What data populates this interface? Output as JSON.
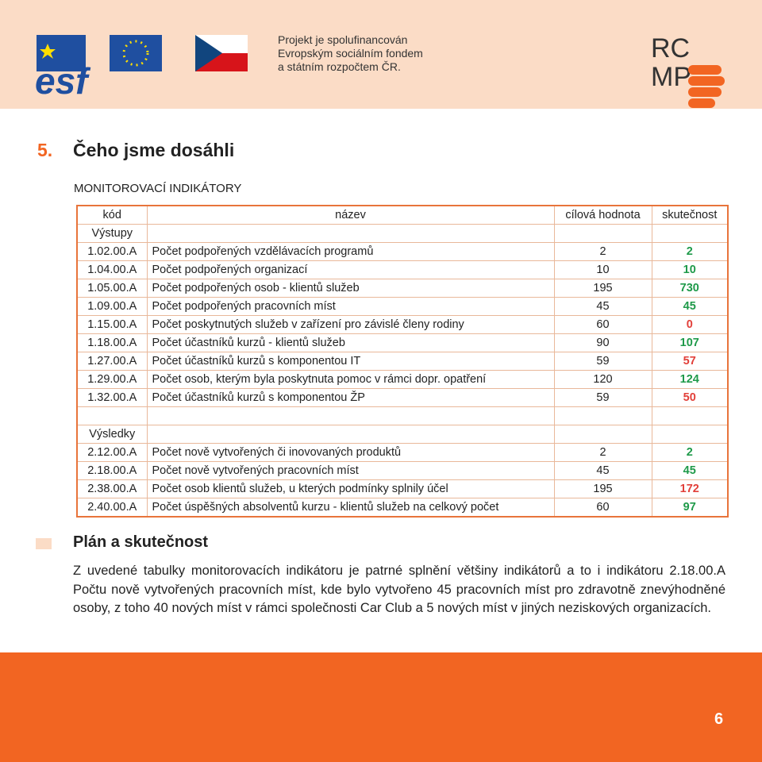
{
  "header": {
    "logos": {
      "esf": "esf",
      "rcmp_top": "RC",
      "rcmp_bottom": "MP"
    },
    "funding_lines": [
      "Projekt je spolufinancován",
      "Evropským sociálním fondem",
      "a státním rozpočtem ČR."
    ]
  },
  "section": {
    "number": "5.",
    "title": "Čeho jsme dosáhli"
  },
  "table_title": "MONITOROVACÍ INDIKÁTORY",
  "table": {
    "header": [
      "kód",
      "název",
      "cílová hodnota",
      "skutečnost"
    ],
    "sections": [
      {
        "label": "Výstupy",
        "rows": [
          [
            "1.02.00.A",
            "Počet podpořených vzdělávacích programů",
            2,
            2
          ],
          [
            "1.04.00.A",
            "Počet podpořených organizací",
            10,
            10
          ],
          [
            "1.05.00.A",
            "Počet podpořených osob - klientů služeb",
            195,
            730
          ],
          [
            "1.09.00.A",
            "Počet podpořených pracovních míst",
            45,
            45
          ],
          [
            "1.15.00.A",
            "Počet poskytnutých služeb v zařízení pro závislé členy rodiny",
            60,
            0
          ],
          [
            "1.18.00.A",
            "Počet účastníků kurzů - klientů služeb",
            90,
            107
          ],
          [
            "1.27.00.A",
            "Počet účastníků kurzů s komponentou IT",
            59,
            57
          ],
          [
            "1.29.00.A",
            "Počet osob, kterým byla poskytnuta pomoc v rámci dopr. opatření",
            120,
            124
          ],
          [
            "1.32.00.A",
            "Počet účastníků kurzů s komponentou ŽP",
            59,
            50
          ]
        ]
      },
      {
        "label": "Výsledky",
        "rows": [
          [
            "2.12.00.A",
            "Počet nově vytvořených či inovovaných produktů",
            2,
            2
          ],
          [
            "2.18.00.A",
            "Počet nově vytvořených pracovních míst",
            45,
            45
          ],
          [
            "2.38.00.A",
            "Počet osob klientů služeb, u kterých podmínky splnily účel",
            195,
            172
          ],
          [
            "2.40.00.A",
            "Počet úspěšných absolventů kurzu - klientů služeb na celkový počet",
            60,
            97
          ]
        ]
      }
    ]
  },
  "plan": {
    "title": "Plán a skutečnost",
    "text": "Z uvedené tabulky monitorovacích indikátoru je patrné splnění většiny indikátorů a to i indikátoru 2.18.00.A Počtu nově vytvořených pracovních míst, kde bylo vytvořeno 45 pracovních míst pro zdravotně znevýhodněné osoby, z toho 40 nových míst v rámci společnosti Car Club a 5 nových míst v jiných neziskových organizacích."
  },
  "footer": {
    "page": "6"
  }
}
